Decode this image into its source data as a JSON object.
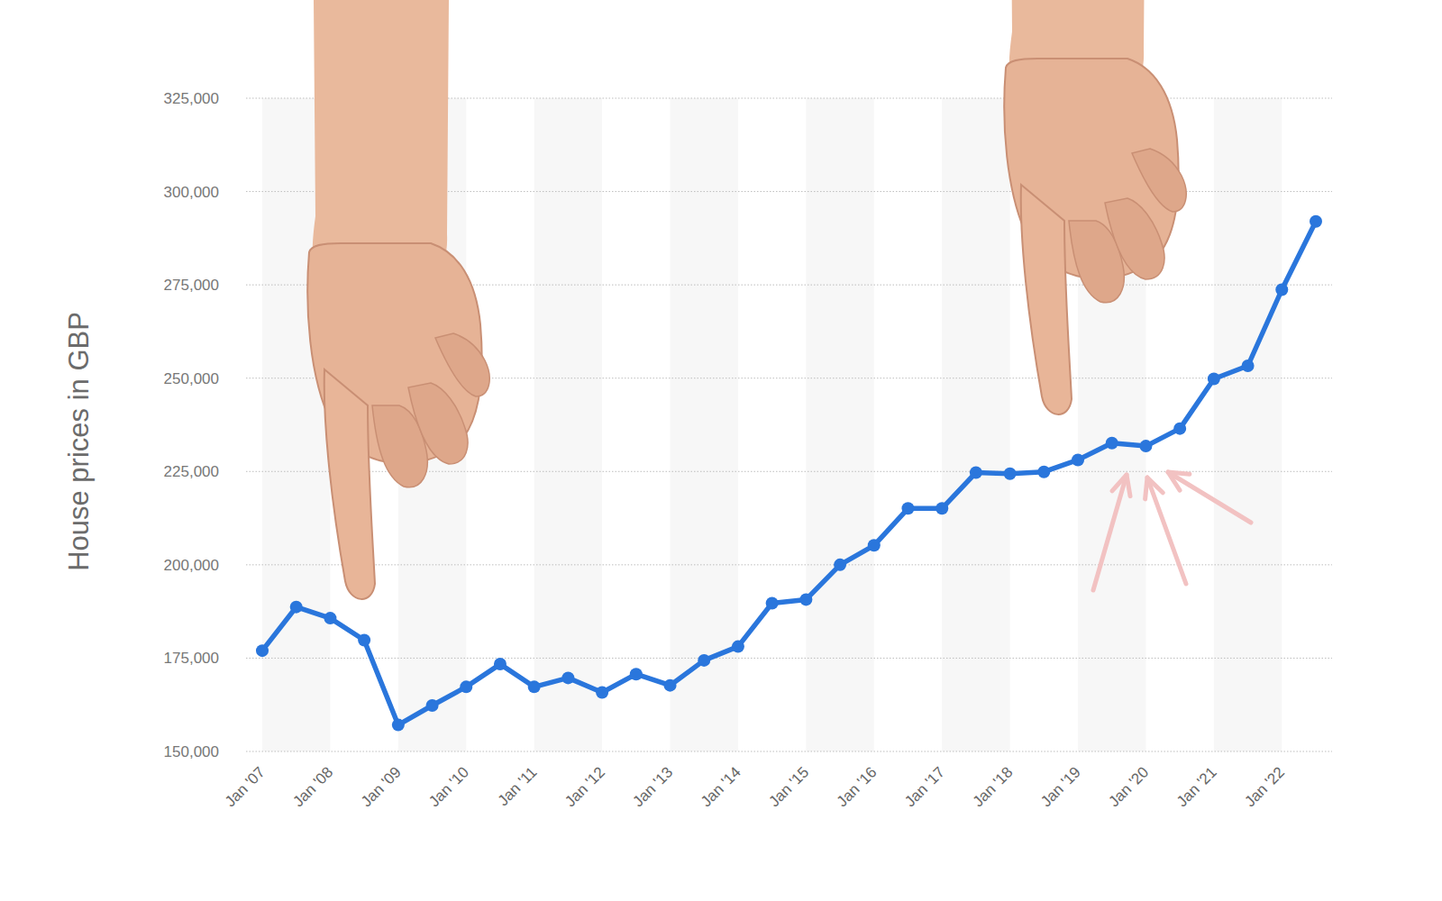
{
  "chart_data": {
    "type": "line",
    "y_label": "House prices in GBP",
    "categories": [
      "Jan '07",
      null,
      "Jan '08",
      null,
      "Jan '09",
      null,
      "Jan '10",
      null,
      "Jan '11",
      null,
      "Jan '12",
      null,
      "Jan '13",
      null,
      "Jan '14",
      null,
      "Jan '15",
      null,
      "Jan '16",
      null,
      "Jan '17",
      null,
      "Jan '18",
      null,
      "Jan '19",
      null,
      "Jan '20",
      null,
      "Jan '21",
      null,
      "Jan '22",
      null
    ],
    "values": [
      177000,
      188700,
      185700,
      179800,
      157100,
      162300,
      167300,
      173400,
      167300,
      169700,
      165800,
      170700,
      167700,
      174400,
      178100,
      189700,
      190700,
      200000,
      205200,
      215100,
      215100,
      224700,
      224400,
      224900,
      228100,
      232600,
      231800,
      236500,
      249800,
      253300,
      273700,
      292000
    ],
    "color": "#2a76dc",
    "marker": "circle",
    "ylim": [
      150000,
      325000
    ],
    "yticks": [
      {
        "value": 150000,
        "label": "150,000"
      },
      {
        "value": 175000,
        "label": "175,000"
      },
      {
        "value": 200000,
        "label": "200,000"
      },
      {
        "value": 225000,
        "label": "225,000"
      },
      {
        "value": 250000,
        "label": "250,000"
      },
      {
        "value": 275000,
        "label": "275,000"
      },
      {
        "value": 300000,
        "label": "300,000"
      },
      {
        "value": 325000,
        "label": "325,000"
      }
    ],
    "grid": true
  }
}
